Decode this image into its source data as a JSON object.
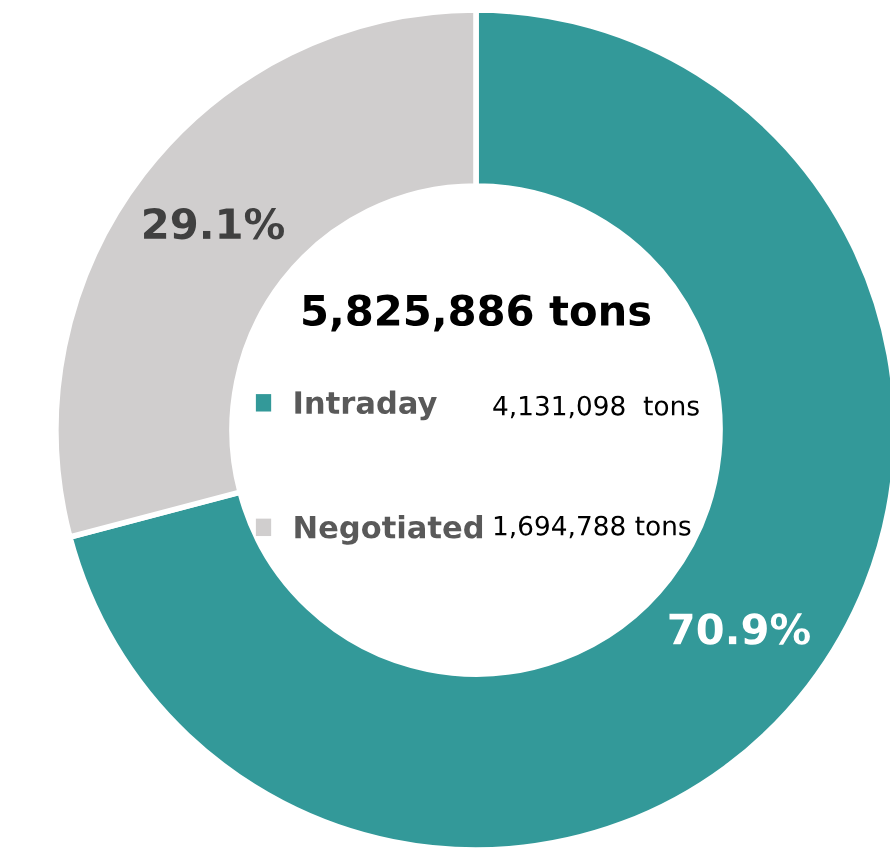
{
  "chart_data": {
    "type": "donut",
    "title": "5,825,886 tons",
    "categories": [
      "Intraday",
      "Negotiated"
    ],
    "values": [
      70.9,
      29.1
    ],
    "colors": [
      "#339999",
      "#d0cece"
    ],
    "value_labels": [
      "70.9%",
      "29.1%"
    ],
    "annotations": [
      "4,131,098  tons",
      "1,694,788 tons"
    ],
    "legend": "center"
  }
}
